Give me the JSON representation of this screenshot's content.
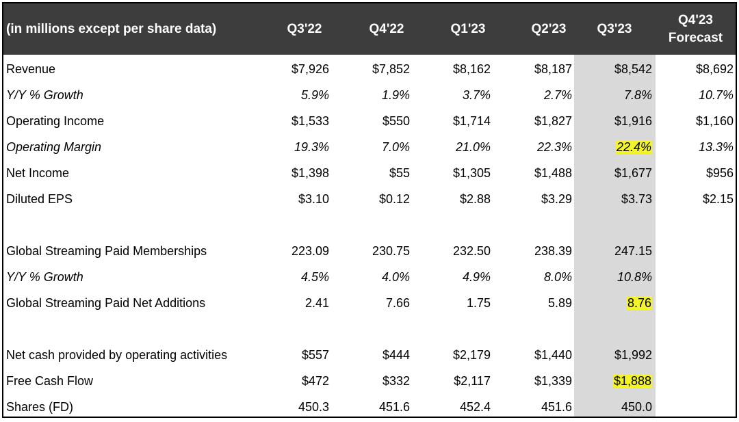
{
  "header": {
    "label": "(in millions except per share data)",
    "columns": [
      "Q3'22",
      "Q4'22",
      "Q1'23",
      "Q2'23",
      "Q3'23"
    ],
    "forecast_line1": "Q4'23",
    "forecast_line2": "Forecast"
  },
  "rows": [
    {
      "label": "Revenue",
      "values": [
        "$7,926",
        "$7,852",
        "$8,162",
        "$8,187",
        "$8,542",
        "$8,692"
      ]
    },
    {
      "label": "Y/Y % Growth",
      "values": [
        "5.9%",
        "1.9%",
        "3.7%",
        "2.7%",
        "7.8%",
        "10.7%"
      ]
    },
    {
      "label": "Operating Income",
      "values": [
        "$1,533",
        "$550",
        "$1,714",
        "$1,827",
        "$1,916",
        "$1,160"
      ]
    },
    {
      "label": "Operating Margin",
      "values": [
        "19.3%",
        "7.0%",
        "21.0%",
        "22.3%",
        "22.4%",
        "13.3%"
      ]
    },
    {
      "label": "Net Income",
      "values": [
        "$1,398",
        "$55",
        "$1,305",
        "$1,488",
        "$1,677",
        "$956"
      ]
    },
    {
      "label": "Diluted EPS",
      "values": [
        "$3.10",
        "$0.12",
        "$2.88",
        "$3.29",
        "$3.73",
        "$2.15"
      ]
    },
    {
      "label": "Global Streaming Paid Memberships",
      "values": [
        "223.09",
        "230.75",
        "232.50",
        "238.39",
        "247.15"
      ]
    },
    {
      "label": "Y/Y % Growth",
      "values": [
        "4.5%",
        "4.0%",
        "4.9%",
        "8.0%",
        "10.8%"
      ]
    },
    {
      "label": "Global Streaming Paid Net Additions",
      "values": [
        "2.41",
        "7.66",
        "1.75",
        "5.89",
        "8.76"
      ]
    },
    {
      "label": "Net cash provided by operating activities",
      "values": [
        "$557",
        "$444",
        "$2,179",
        "$1,440",
        "$1,992"
      ]
    },
    {
      "label": "Free Cash Flow",
      "values": [
        "$472",
        "$332",
        "$2,117",
        "$1,339",
        "$1,888"
      ]
    },
    {
      "label": "Shares (FD)",
      "values": [
        "450.3",
        "451.6",
        "452.4",
        "451.6",
        "450.0"
      ]
    }
  ],
  "colors": {
    "header_bg": "#3d3d3d",
    "header_text": "#ffffff",
    "current_quarter_shade": "#d9d9d9",
    "highlight": "#f3f32a"
  }
}
